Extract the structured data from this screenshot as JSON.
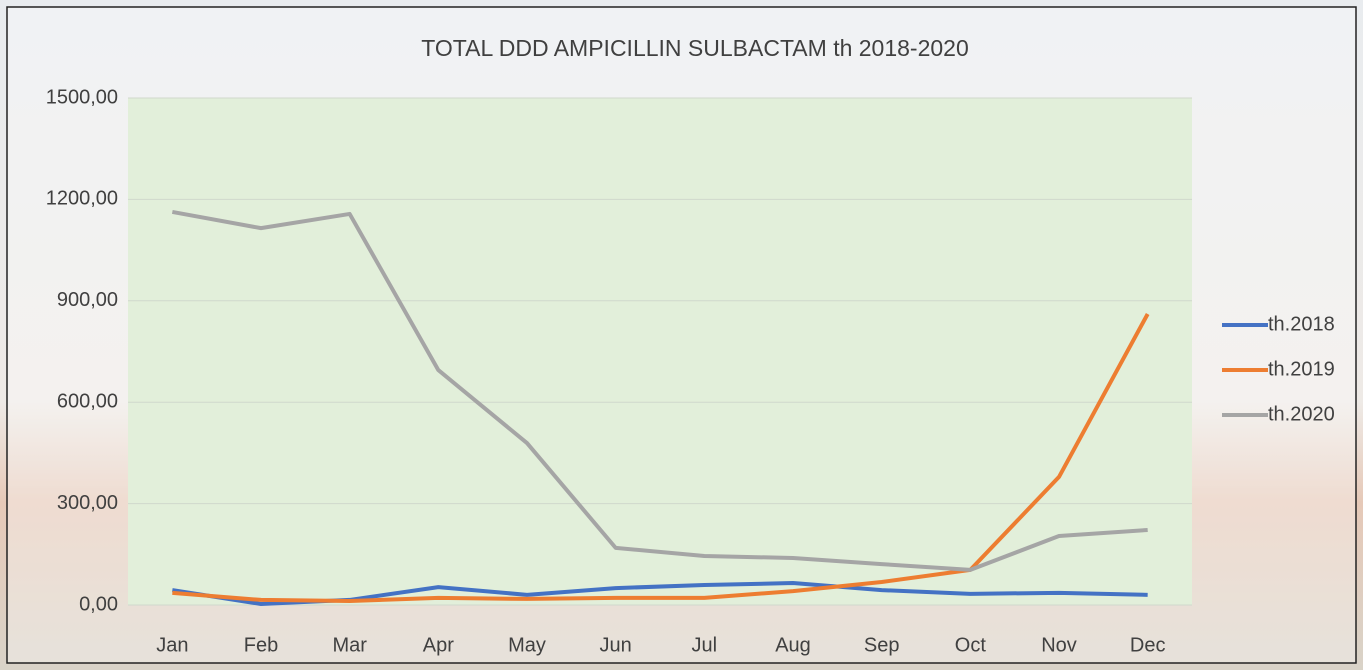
{
  "chart_data": {
    "type": "line",
    "title": "TOTAL DDD AMPICILLIN SULBACTAM th 2018-2020",
    "categories": [
      "Jan",
      "Feb",
      "Mar",
      "Apr",
      "May",
      "Jun",
      "Jul",
      "Aug",
      "Sep",
      "Oct",
      "Nov",
      "Dec"
    ],
    "series": [
      {
        "name": "th.2018",
        "color": "#4472c4",
        "values": [
          44,
          3,
          15,
          53,
          30,
          50,
          59,
          65,
          44,
          33,
          36,
          30
        ]
      },
      {
        "name": "th.2019",
        "color": "#ed7d31",
        "values": [
          36,
          15,
          12,
          21,
          18,
          21,
          21,
          41,
          68,
          104,
          379,
          861
        ]
      },
      {
        "name": "th.2020",
        "color": "#a5a5a5",
        "values": [
          1163,
          1115,
          1157,
          695,
          479,
          169,
          145,
          139,
          121,
          104,
          204,
          222
        ]
      }
    ],
    "ylim": [
      0,
      1500
    ],
    "yticks": [
      {
        "value": 0,
        "label": "0,00"
      },
      {
        "value": 300,
        "label": "300,00"
      },
      {
        "value": 600,
        "label": "600,00"
      },
      {
        "value": 900,
        "label": "900,00"
      },
      {
        "value": 1200,
        "label": "1200,00"
      },
      {
        "value": 1500,
        "label": "1500,00"
      }
    ],
    "grid": true,
    "legend": "right"
  }
}
